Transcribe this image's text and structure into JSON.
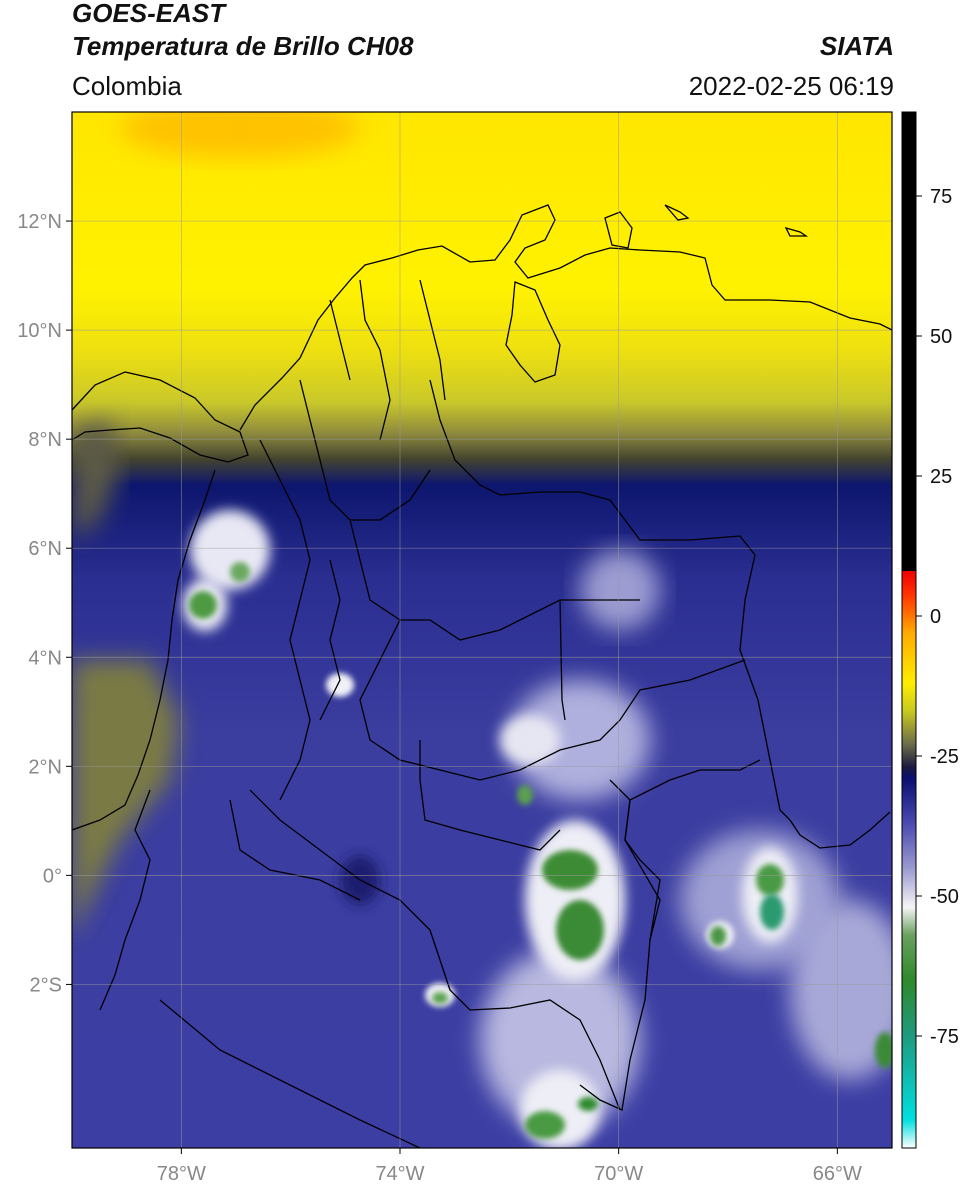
{
  "header": {
    "satellite": "GOES-EAST",
    "product": "Temperatura de Brillo CH08",
    "region": "Colombia",
    "brand": "SIATA",
    "timestamp": "2022-02-25 06:19"
  },
  "map": {
    "lon_range": [
      -80,
      -65
    ],
    "lat_range": [
      -5,
      14
    ],
    "x_ticks": [
      {
        "value": -78,
        "label": "78°W"
      },
      {
        "value": -74,
        "label": "74°W"
      },
      {
        "value": -70,
        "label": "70°W"
      },
      {
        "value": -66,
        "label": "66°W"
      }
    ],
    "y_ticks": [
      {
        "value": 12,
        "label": "12°N"
      },
      {
        "value": 10,
        "label": "10°N"
      },
      {
        "value": 8,
        "label": "8°N"
      },
      {
        "value": 6,
        "label": "6°N"
      },
      {
        "value": 4,
        "label": "4°N"
      },
      {
        "value": 2,
        "label": "2°N"
      },
      {
        "value": 0,
        "label": "0°"
      },
      {
        "value": -2,
        "label": "2°S"
      }
    ],
    "grid": true
  },
  "colorbar": {
    "range": [
      -95,
      90
    ],
    "ticks": [
      {
        "value": 75,
        "label": "75"
      },
      {
        "value": 50,
        "label": "50"
      },
      {
        "value": 25,
        "label": "25"
      },
      {
        "value": 0,
        "label": "0"
      },
      {
        "value": -25,
        "label": "-25"
      },
      {
        "value": -50,
        "label": "-50"
      },
      {
        "value": -75,
        "label": "-75"
      }
    ],
    "stops": [
      {
        "value": -95,
        "color": "#ffffff"
      },
      {
        "value": -90,
        "color": "#00e0e0"
      },
      {
        "value": -75,
        "color": "#1f9a80"
      },
      {
        "value": -65,
        "color": "#2e8a2a"
      },
      {
        "value": -57,
        "color": "#6aa060"
      },
      {
        "value": -52,
        "color": "#f5f5f5"
      },
      {
        "value": -45,
        "color": "#9a9ad0"
      },
      {
        "value": -37,
        "color": "#4a4ab0"
      },
      {
        "value": -29,
        "color": "#0a1070"
      },
      {
        "value": -27,
        "color": "#1a1a40"
      },
      {
        "value": -23,
        "color": "#6a6a4a"
      },
      {
        "value": -17,
        "color": "#c8c820"
      },
      {
        "value": -12,
        "color": "#ffee00"
      },
      {
        "value": -3,
        "color": "#ffaa00"
      },
      {
        "value": 4,
        "color": "#ff3000"
      },
      {
        "value": 8,
        "color": "#ee0000"
      },
      {
        "value": 8.01,
        "color": "#000000"
      },
      {
        "value": 90,
        "color": "#000000"
      }
    ]
  }
}
